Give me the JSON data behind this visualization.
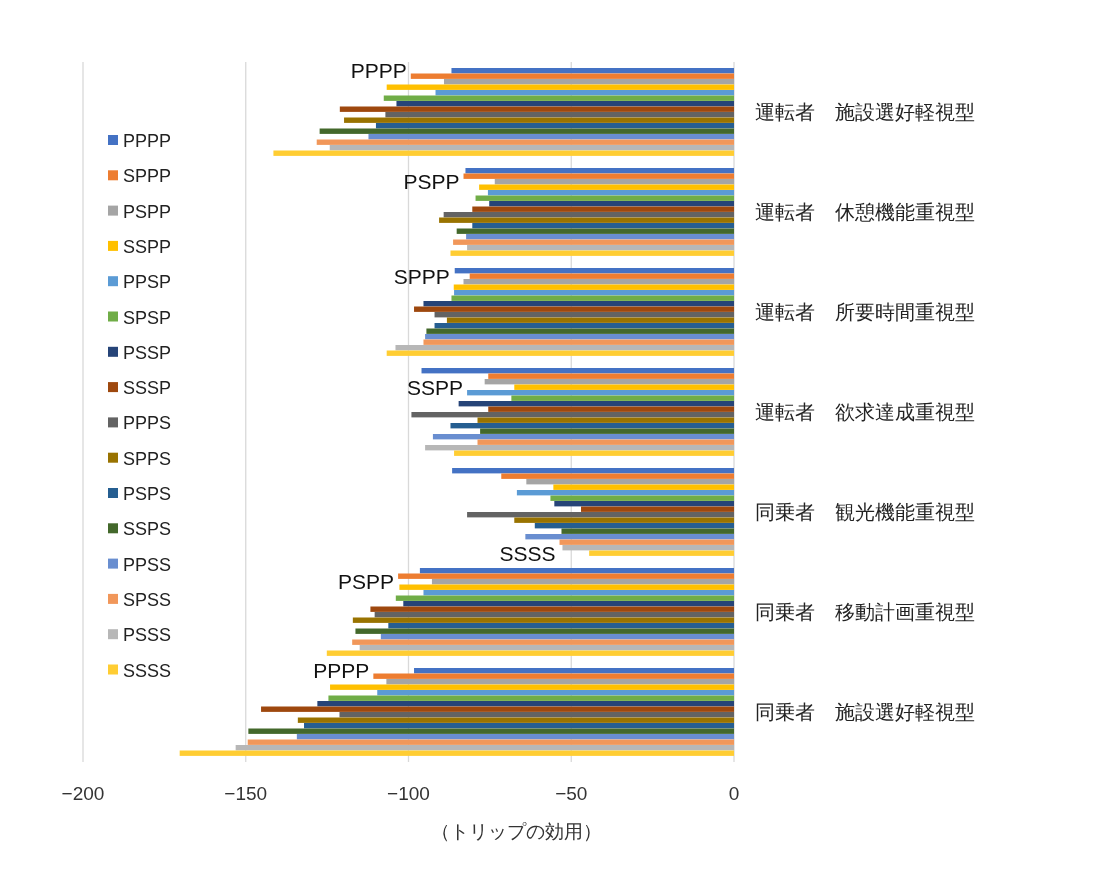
{
  "chart_data": {
    "type": "bar",
    "orientation": "horizontal",
    "categories": [
      "運転者　施設選好軽視型",
      "運転者　休憩機能重視型",
      "運転者　所要時間重視型",
      "運転者　欲求達成重視型",
      "同乗者　観光機能重視型",
      "同乗者　移動計画重視型",
      "同乗者　施設選好軽視型"
    ],
    "xlabel": "（トリップの効用）",
    "xlim": [
      -200,
      0
    ],
    "xticks": [
      -200,
      -150,
      -100,
      -50,
      0
    ],
    "grid": "x",
    "legend": "left",
    "series": [
      {
        "name": "PPPP",
        "color": "#4472c4",
        "values": [
          -86.8,
          -82.5,
          -85.8,
          -96.0,
          -86.6,
          -96.5,
          -98.3
        ]
      },
      {
        "name": "SPPP",
        "color": "#ed7d31",
        "values": [
          -99.3,
          -83.1,
          -81.2,
          -75.5,
          -71.5,
          -103.2,
          -110.8
        ]
      },
      {
        "name": "PSPP",
        "color": "#a5a5a5",
        "values": [
          -89.1,
          -73.5,
          -83.1,
          -76.6,
          -63.8,
          -92.8,
          -106.8
        ]
      },
      {
        "name": "SSPP",
        "color": "#ffc000",
        "values": [
          -106.7,
          -78.3,
          -86.1,
          -67.5,
          -55.5,
          -102.8,
          -124.1
        ]
      },
      {
        "name": "PPSP",
        "color": "#5b9bd5",
        "values": [
          -91.7,
          -75.6,
          -86.0,
          -82.0,
          -66.7,
          -95.4,
          -109.6
        ]
      },
      {
        "name": "SPSP",
        "color": "#70ad47",
        "values": [
          -107.6,
          -79.4,
          -86.8,
          -68.4,
          -56.4,
          -103.9,
          -124.6
        ]
      },
      {
        "name": "PSSP",
        "color": "#264478",
        "values": [
          -103.7,
          -75.2,
          -95.4,
          -84.6,
          -55.2,
          -101.6,
          -128.0
        ]
      },
      {
        "name": "SSSP",
        "color": "#9e480e",
        "values": [
          -121.1,
          -80.4,
          -98.3,
          -75.5,
          -47.0,
          -111.7,
          -145.3
        ]
      },
      {
        "name": "PPPS",
        "color": "#636363",
        "values": [
          -107.1,
          -89.2,
          -92.0,
          -99.1,
          -82.0,
          -110.4,
          -121.2
        ]
      },
      {
        "name": "SPPS",
        "color": "#997300",
        "values": [
          -119.8,
          -90.6,
          -88.2,
          -78.8,
          -67.5,
          -117.1,
          -134.0
        ]
      },
      {
        "name": "PSPS",
        "color": "#255e91",
        "values": [
          -110.0,
          -80.4,
          -92.0,
          -87.1,
          -61.2,
          -106.2,
          -132.1
        ]
      },
      {
        "name": "SSPS",
        "color": "#43682b",
        "values": [
          -127.3,
          -85.2,
          -94.5,
          -78.0,
          -53.0,
          -116.3,
          -149.2
        ]
      },
      {
        "name": "PPSS",
        "color": "#698ed0",
        "values": [
          -112.3,
          -82.3,
          -94.9,
          -92.5,
          -64.1,
          -108.5,
          -134.3
        ]
      },
      {
        "name": "SPSS",
        "color": "#f1975a",
        "values": [
          -128.2,
          -86.3,
          -95.4,
          -78.8,
          -53.6,
          -117.3,
          -149.4
        ]
      },
      {
        "name": "PSSS",
        "color": "#b7b7b7",
        "values": [
          -124.2,
          -82.0,
          -104.0,
          -94.9,
          -52.7,
          -115.0,
          -153.1
        ]
      },
      {
        "name": "SSSS",
        "color": "#ffcd33",
        "values": [
          -141.5,
          -87.1,
          -106.7,
          -86.0,
          -44.5,
          -125.1,
          -170.3
        ]
      }
    ],
    "annotations": [
      {
        "text": "PPPP",
        "x": -86.8,
        "y": "運転者　施設選好軽視型"
      },
      {
        "text": "PSPP",
        "x": -73.5,
        "y": "運転者　休憩機能重視型"
      },
      {
        "text": "SPPP",
        "x": -81.2,
        "y": "運転者　所要時間重視型"
      },
      {
        "text": "SSPP",
        "x": -67.5,
        "y": "運転者　欲求達成重視型"
      },
      {
        "text": "SSSS",
        "x": -44.5,
        "y": "同乗者　観光機能重視型"
      },
      {
        "text": "PSPP",
        "x": -92.8,
        "y": "同乗者　移動計画重視型"
      },
      {
        "text": "PPPP",
        "x": -98.3,
        "y": "同乗者　施設選好軽視型"
      }
    ]
  }
}
